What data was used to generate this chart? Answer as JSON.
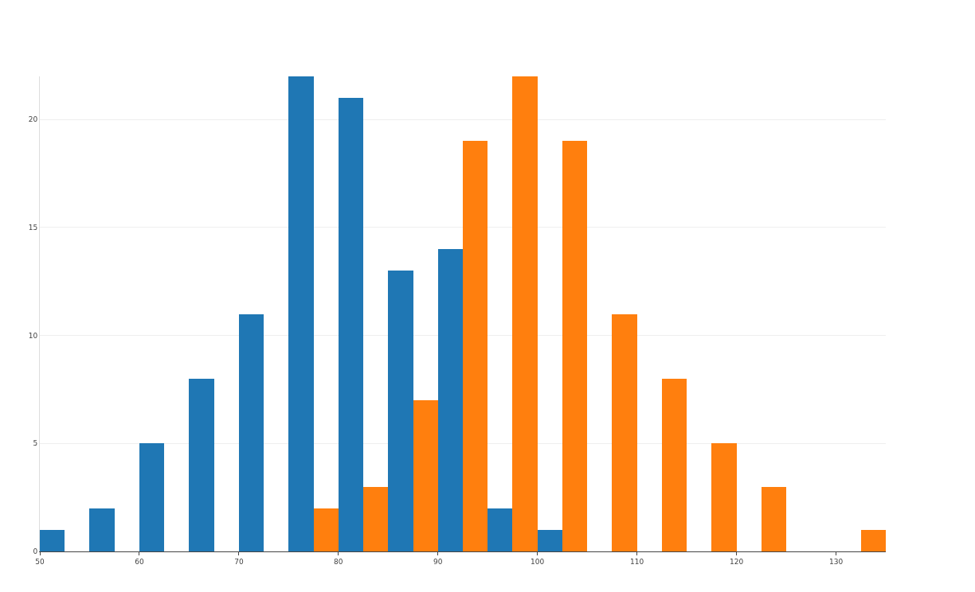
{
  "chart_data": {
    "type": "histogram",
    "bins": [
      50,
      55,
      60,
      65,
      70,
      75,
      80,
      85,
      90,
      95,
      100,
      105,
      110,
      115,
      120,
      125,
      130,
      135
    ],
    "series": [
      {
        "color": "#1f77b4",
        "values": [
          1,
          2,
          5,
          8,
          11,
          22,
          21,
          13,
          14,
          2,
          1,
          0,
          0,
          0,
          0,
          0,
          0
        ]
      },
      {
        "color": "#ff7f0e",
        "values": [
          0,
          0,
          0,
          0,
          0,
          2,
          3,
          7,
          19,
          22,
          19,
          11,
          8,
          5,
          3,
          0,
          1
        ]
      }
    ],
    "xlim": [
      50,
      135
    ],
    "xticks": [
      50,
      60,
      70,
      80,
      90,
      100,
      110,
      120,
      130
    ],
    "ylim": [
      0,
      22
    ],
    "yticks": [
      0,
      5,
      10,
      15,
      20
    ],
    "grid": "y"
  }
}
